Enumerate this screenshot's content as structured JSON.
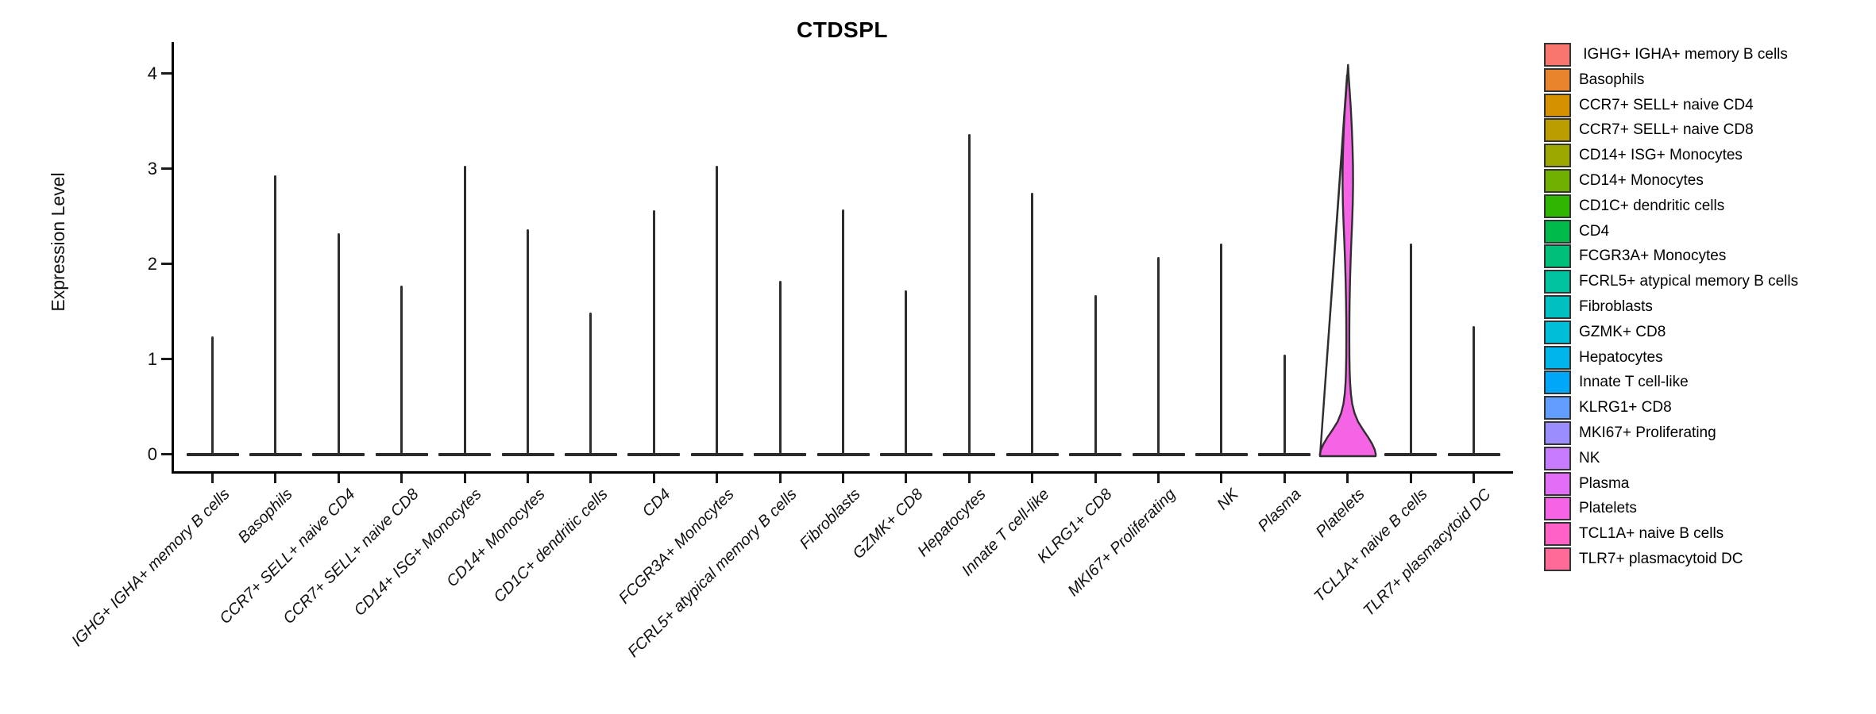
{
  "chart_data": {
    "type": "violin",
    "title": "CTDSPL",
    "ylabel": "Expression Level",
    "xlabel": "",
    "ylim": [
      0,
      4.3
    ],
    "yticks": [
      "0",
      "1",
      "2",
      "3",
      "4"
    ],
    "grid": false,
    "legend_position": "right",
    "categories": [
      {
        "label": " IGHG+ IGHA+ memory B cells",
        "color": "#F8766D",
        "max_expression": 1.24
      },
      {
        "label": "Basophils",
        "color": "#E9842C",
        "max_expression": 2.93
      },
      {
        "label": "CCR7+ SELL+ naive CD4",
        "color": "#D69100",
        "max_expression": 2.32
      },
      {
        "label": "CCR7+ SELL+ naive CD8",
        "color": "#BC9D00",
        "max_expression": 1.77
      },
      {
        "label": "CD14+ ISG+ Monocytes",
        "color": "#9CA700",
        "max_expression": 3.03
      },
      {
        "label": "CD14+ Monocytes",
        "color": "#6FB000",
        "max_expression": 2.36
      },
      {
        "label": "CD1C+ dendritic cells",
        "color": "#2FB600",
        "max_expression": 1.49
      },
      {
        "label": "CD4",
        "color": "#00BB4B",
        "max_expression": 2.56
      },
      {
        "label": "FCGR3A+ Monocytes",
        "color": "#00BF7A",
        "max_expression": 3.03
      },
      {
        "label": "FCRL5+ atypical memory B cells",
        "color": "#00C29F",
        "max_expression": 1.82
      },
      {
        "label": "Fibroblasts",
        "color": "#00C1BF",
        "max_expression": 2.57
      },
      {
        "label": "GZMK+ CD8",
        "color": "#00BDD8",
        "max_expression": 1.72
      },
      {
        "label": "Hepatocytes",
        "color": "#00B5EC",
        "max_expression": 3.36
      },
      {
        "label": "Innate T cell-like",
        "color": "#00A7F9",
        "max_expression": 2.75
      },
      {
        "label": "KLRG1+ CD8",
        "color": "#619CFF",
        "max_expression": 1.67
      },
      {
        "label": "MKI67+ Proliferating",
        "color": "#9C8DFF",
        "max_expression": 2.07
      },
      {
        "label": "NK",
        "color": "#C77CFF",
        "max_expression": 2.21
      },
      {
        "label": "Plasma",
        "color": "#E26EF7",
        "max_expression": 1.05
      },
      {
        "label": "Platelets",
        "color": "#F564E4",
        "max_expression": 4.11
      },
      {
        "label": "TCL1A+ naive B cells",
        "color": "#FF61C7",
        "max_expression": 2.21
      },
      {
        "label": "TLR7+ plasmacytoid DC",
        "color": "#FF6A98",
        "max_expression": 1.35
      }
    ],
    "expressed_violin": {
      "category": "Platelets",
      "fill": "#F564E4",
      "outline": "#2e2e2e",
      "profile_value_halfwidth": [
        [
          4.11,
          0.3
        ],
        [
          4.0,
          1.0
        ],
        [
          3.85,
          2.2
        ],
        [
          3.65,
          3.8
        ],
        [
          3.45,
          5.0
        ],
        [
          3.25,
          5.9
        ],
        [
          3.05,
          6.5
        ],
        [
          2.85,
          6.6
        ],
        [
          2.65,
          6.2
        ],
        [
          2.45,
          5.4
        ],
        [
          2.25,
          4.4
        ],
        [
          2.05,
          3.5
        ],
        [
          1.85,
          2.8
        ],
        [
          1.65,
          2.3
        ],
        [
          1.45,
          2.0
        ],
        [
          1.25,
          1.9
        ],
        [
          1.05,
          2.0
        ],
        [
          0.9,
          2.3
        ],
        [
          0.78,
          2.8
        ],
        [
          0.66,
          3.8
        ],
        [
          0.55,
          5.5
        ],
        [
          0.45,
          8.5
        ],
        [
          0.36,
          13.0
        ],
        [
          0.28,
          19.0
        ],
        [
          0.2,
          25.5
        ],
        [
          0.13,
          30.5
        ],
        [
          0.07,
          33.8
        ],
        [
          0.02,
          35.2
        ],
        [
          0.0,
          35.0
        ]
      ]
    }
  }
}
